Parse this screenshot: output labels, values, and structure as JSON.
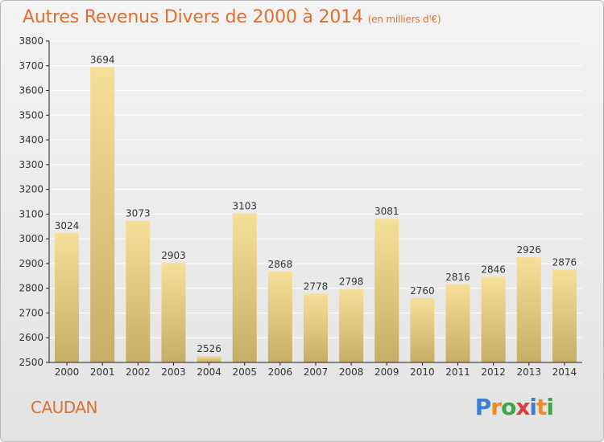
{
  "header": {
    "title": "Autres Revenus Divers de 2000 à 2014",
    "unit": "(en milliers d'€)"
  },
  "commune": "CAUDAN",
  "logo": {
    "text": "Proxiti",
    "letter_colors": [
      "#3a7fd1",
      "#f08a24",
      "#3aa845",
      "#e23b3b",
      "#3a7fd1",
      "#f08a24",
      "#3aa845"
    ]
  },
  "colors": {
    "title": "#e0702f",
    "bar_light": "#f6df98",
    "bar_dark": "#c7ae67",
    "axis": "#222222",
    "grid": "#ffffff"
  },
  "chart_data": {
    "type": "bar",
    "title": "Autres Revenus Divers de 2000 à 2014",
    "subtitle": "(en milliers d'€)",
    "categories": [
      "2000",
      "2001",
      "2002",
      "2003",
      "2004",
      "2005",
      "2006",
      "2007",
      "2008",
      "2009",
      "2010",
      "2011",
      "2012",
      "2013",
      "2014"
    ],
    "values": [
      3024,
      3694,
      3073,
      2903,
      2526,
      3103,
      2868,
      2778,
      2798,
      3081,
      2760,
      2816,
      2846,
      2926,
      2876
    ],
    "ylim": [
      2500,
      3800
    ],
    "yticks": [
      2500,
      2600,
      2700,
      2800,
      2900,
      3000,
      3100,
      3200,
      3300,
      3400,
      3500,
      3600,
      3700,
      3800
    ],
    "grid": true,
    "data_labels": true
  }
}
